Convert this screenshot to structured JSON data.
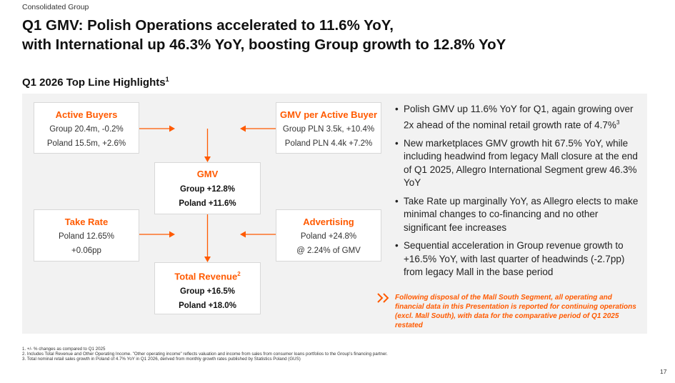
{
  "header": {
    "group_label": "Consolidated Group",
    "title_line1": "Q1 GMV: Polish Operations accelerated to 11.6% YoY,",
    "title_line2": "with International up 46.3% YoY, boosting Group growth to 12.8% YoY",
    "section_title": "Q1 2026 Top Line Highlights",
    "section_title_sup": "1"
  },
  "diagram": {
    "active_buyers": {
      "title": "Active Buyers",
      "line1": "Group 20.4m, -0.2%",
      "line2": "Poland 15.5m, +2.6%"
    },
    "gmv_per_buyer": {
      "title": "GMV per Active Buyer",
      "line1": "Group PLN 3.5k, +10.4%",
      "line2": "Poland PLN 4.4k +7.2%"
    },
    "gmv": {
      "title": "GMV",
      "line1": "Group +12.8%",
      "line2": "Poland +11.6%"
    },
    "take_rate": {
      "title": "Take Rate",
      "line1": "Poland 12.65%",
      "line2": "+0.06pp"
    },
    "advertising": {
      "title": "Advertising",
      "line1": "Poland +24.8%",
      "line2": "@ 2.24% of GMV"
    },
    "total_revenue": {
      "title": "Total Revenue",
      "title_sup": "2",
      "line1": "Group +16.5%",
      "line2": "Poland +18.0%"
    }
  },
  "bullets": [
    {
      "text": "Polish GMV up 11.6% YoY for Q1, again growing over 2x ahead of the nominal retail growth rate of 4.7%",
      "sup": "3"
    },
    {
      "text": "New marketplaces GMV growth hit 67.5% YoY, while including headwind from legacy Mall closure at the end of Q1 2025, Allegro International Segment grew 46.3% YoY",
      "sup": ""
    },
    {
      "text": "Take Rate up marginally YoY, as Allegro elects to make minimal changes to co-financing and no other significant fee increases",
      "sup": ""
    },
    {
      "text": "Sequential acceleration in Group revenue growth to +16.5% YoY, with last quarter of headwinds (-2.7pp) from legacy Mall in the base period",
      "sup": ""
    }
  ],
  "note": "Following disposal of the Mall South Segment, all operating and financial data in this Presentation is reported for continuing operations (excl. Mall South), with data for the comparative period of Q1 2025 restated",
  "footnotes": [
    "1.  +/- % changes as compared to Q1 2025",
    "2.  Includes Total Revenue and Other Operating Income. \"Other operating income\" reflects valuation and income from sales from consumer loans portfolios to the Group's financing partner.",
    "3.  Total nominal retail sales growth in Poland of 4.7% YoY in Q1 2026, derived from monthly growth rates published by Statistics Poland (GUS)"
  ],
  "page_number": "17",
  "colors": {
    "accent": "#ff5a00",
    "panel": "#f2f2f2"
  },
  "icons": {
    "bullet": "•",
    "note": "double-chevron-right-icon"
  }
}
